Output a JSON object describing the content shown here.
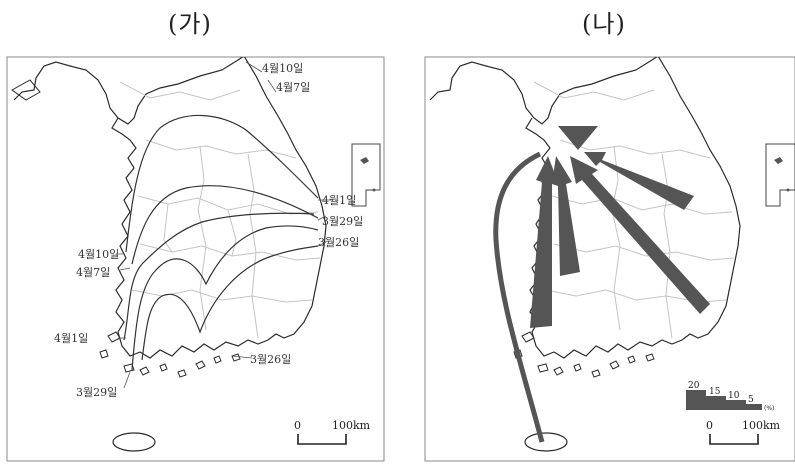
{
  "panel_a": {
    "title": "(가)",
    "isoline_labels": [
      {
        "key": "east_apr10",
        "text": "4월10일"
      },
      {
        "key": "east_apr7",
        "text": "4월7일"
      },
      {
        "key": "east_apr1",
        "text": "4월1일"
      },
      {
        "key": "east_mar29",
        "text": "3월29일"
      },
      {
        "key": "east_mar26",
        "text": "3월26일"
      },
      {
        "key": "west_apr10",
        "text": "4월10일"
      },
      {
        "key": "west_apr7",
        "text": "4월7일"
      },
      {
        "key": "west_apr1",
        "text": "4월1일"
      },
      {
        "key": "south_mar26",
        "text": "3월26일"
      },
      {
        "key": "south_mar29",
        "text": "3월29일"
      }
    ],
    "scale": {
      "zero": "0",
      "distance": "100km"
    }
  },
  "panel_b": {
    "title": "(나)",
    "flow_legend": {
      "values": [
        "20",
        "15",
        "10",
        "5"
      ],
      "unit": "(%)"
    },
    "scale": {
      "zero": "0",
      "distance": "100km"
    }
  },
  "colors": {
    "coast": "#2b2b2b",
    "boundary": "#c4c4c4",
    "isoline": "#333333",
    "arrow": "#555555",
    "frame": "#888888"
  }
}
